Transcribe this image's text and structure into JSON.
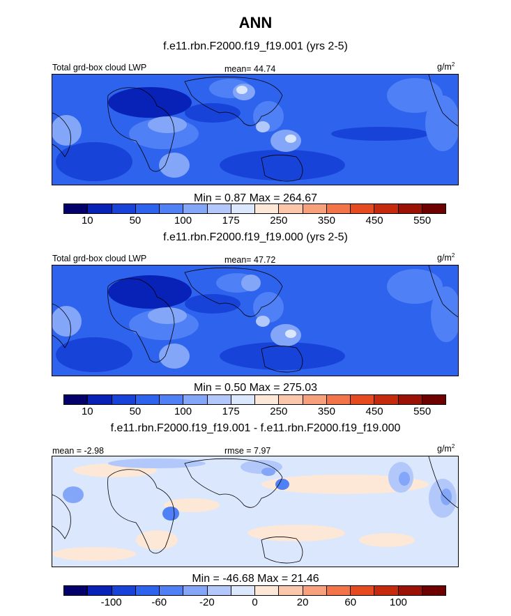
{
  "title": "ANN",
  "units_base": "g/m",
  "units_exp": "2",
  "panels": [
    {
      "case_title": "f.e11.rbn.F2000.f19_f19.001 (yrs 2-5)",
      "left_label": "Total grd-box cloud LWP",
      "center_label": "mean=  44.74",
      "minmax": "Min =   0.87 Max = 264.67"
    },
    {
      "case_title": "f.e11.rbn.F2000.f19_f19.000 (yrs 2-5)",
      "left_label": "Total grd-box cloud LWP",
      "center_label": "mean=  47.72",
      "minmax": "Min =   0.50 Max = 275.03"
    },
    {
      "case_title": "f.e11.rbn.F2000.f19_f19.001 - f.e11.rbn.F2000.f19_f19.000",
      "left_label": "mean =  -2.98",
      "center_label": "rmse =  7.97",
      "minmax": "Min = -46.68 Max =  21.46"
    }
  ],
  "colorbar_colors": [
    "#03006b",
    "#0822b8",
    "#1843d8",
    "#2e63ee",
    "#4f80f5",
    "#83a6f8",
    "#b2c8fb",
    "#dbe7fd",
    "#fde7d6",
    "#fbc7ab",
    "#f8a07c",
    "#f47449",
    "#e54b1f",
    "#c52a0d",
    "#9c1106",
    "#6e0000"
  ],
  "chart_data": [
    {
      "type": "heatmap",
      "title": "f.e11.rbn.F2000.f19_f19.001 (yrs 2-5)",
      "variable": "Total grd-box cloud LWP",
      "units": "g/m2",
      "mean": 44.74,
      "min": 0.87,
      "max": 264.67,
      "contour_levels": [
        10,
        25,
        50,
        75,
        100,
        150,
        175,
        200,
        250,
        300,
        350,
        400,
        450,
        500,
        550
      ],
      "colorbar_tick_labels": [
        "10",
        "50",
        "100",
        "175",
        "250",
        "350",
        "450",
        "550"
      ]
    },
    {
      "type": "heatmap",
      "title": "f.e11.rbn.F2000.f19_f19.000 (yrs 2-5)",
      "variable": "Total grd-box cloud LWP",
      "units": "g/m2",
      "mean": 47.72,
      "min": 0.5,
      "max": 275.03,
      "contour_levels": [
        10,
        25,
        50,
        75,
        100,
        150,
        175,
        200,
        250,
        300,
        350,
        400,
        450,
        500,
        550
      ],
      "colorbar_tick_labels": [
        "10",
        "50",
        "100",
        "175",
        "250",
        "350",
        "450",
        "550"
      ]
    },
    {
      "type": "heatmap",
      "title": "f.e11.rbn.F2000.f19_f19.001 - f.e11.rbn.F2000.f19_f19.000",
      "units": "g/m2",
      "mean": -2.98,
      "rmse": 7.97,
      "min": -46.68,
      "max": 21.46,
      "contour_levels": [
        -120,
        -100,
        -80,
        -60,
        -40,
        -20,
        -10,
        0,
        10,
        20,
        40,
        60,
        80,
        100,
        120
      ],
      "colorbar_tick_labels": [
        "-100",
        "-60",
        "-20",
        "0",
        "20",
        "60",
        "100"
      ]
    }
  ]
}
